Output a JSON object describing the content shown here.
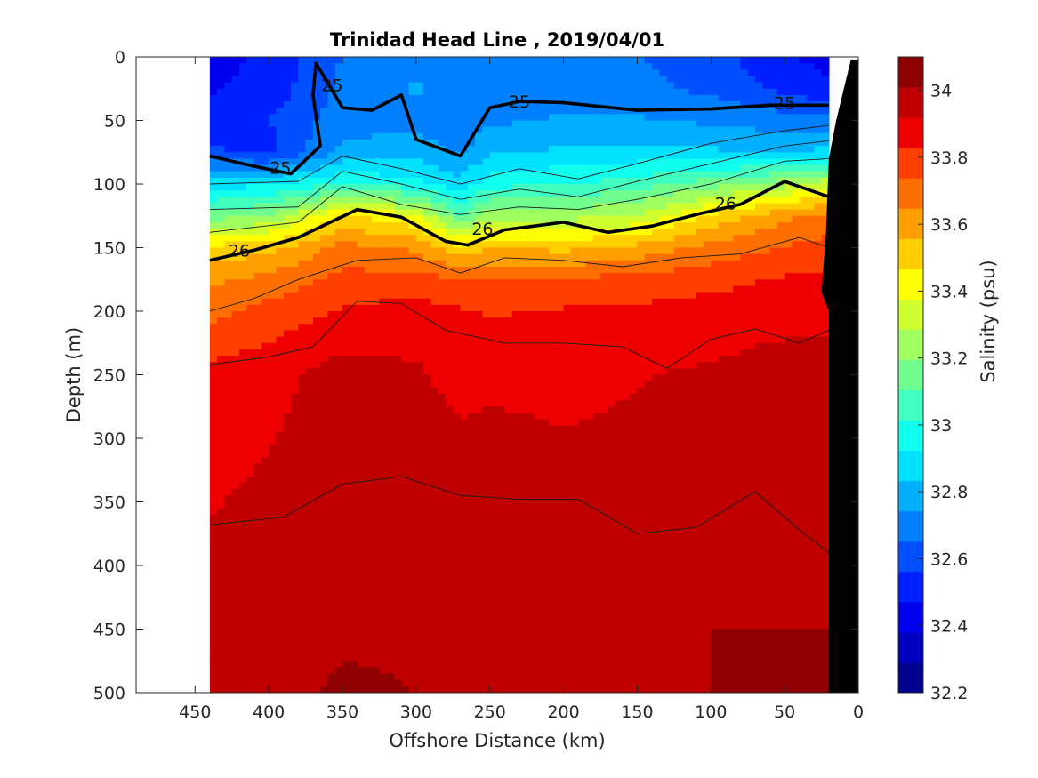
{
  "chart_data": {
    "type": "heatmap",
    "title": "Trinidad Head Line , 2019/04/01",
    "xlabel": "Offshore Distance (km)",
    "ylabel": "Depth (m)",
    "colorbar_label": "Salinity (psu)",
    "x_range": [
      490,
      0
    ],
    "y_range": [
      0,
      500
    ],
    "x_reversed": true,
    "y_reversed": true,
    "x_ticks": [
      450,
      400,
      350,
      300,
      250,
      200,
      150,
      100,
      50,
      0
    ],
    "y_ticks": [
      0,
      50,
      100,
      150,
      200,
      250,
      300,
      350,
      400,
      450,
      500
    ],
    "colorbar": {
      "range": [
        32.2,
        34.1
      ],
      "levels": [
        32.2,
        32.3,
        32.4,
        32.5,
        32.6,
        32.7,
        32.8,
        32.9,
        33.0,
        33.1,
        33.2,
        33.3,
        33.4,
        33.5,
        33.6,
        33.7,
        33.8,
        33.9,
        34.0,
        34.1
      ],
      "ticks": [
        32.2,
        32.4,
        32.6,
        32.8,
        33.0,
        33.2,
        33.4,
        33.6,
        33.8,
        34.0
      ],
      "tick_labels": [
        "32.2",
        "32.4",
        "32.6",
        "32.8",
        "33",
        "33.2",
        "33.4",
        "33.6",
        "33.8",
        "34"
      ],
      "colors": [
        "#00008f",
        "#0000bf",
        "#0000ef",
        "#0020ff",
        "#0050ff",
        "#0080ff",
        "#00b0ff",
        "#00e0ff",
        "#10ffef",
        "#40ffbf",
        "#70ff8f",
        "#a0ff60",
        "#d0ff30",
        "#ffff00",
        "#ffcf00",
        "#ff9f00",
        "#ff6f00",
        "#ff3f00",
        "#ef0000",
        "#bf0000",
        "#8f0000"
      ],
      "location": "right"
    },
    "grid": false,
    "section": {
      "x": [
        440,
        400,
        350,
        300,
        270,
        250,
        200,
        150,
        100,
        50,
        20
      ],
      "depths": [
        0,
        25,
        50,
        75,
        100,
        125,
        150,
        175,
        200,
        250,
        300,
        350,
        400,
        450,
        500
      ],
      "salinity": [
        [
          32.45,
          32.5,
          32.68,
          32.75,
          32.7,
          32.7,
          32.72,
          32.68,
          32.62,
          32.5,
          32.45
        ],
        [
          32.48,
          32.52,
          32.7,
          32.78,
          32.72,
          32.72,
          32.74,
          32.7,
          32.65,
          32.55,
          32.5
        ],
        [
          32.5,
          32.58,
          32.72,
          32.75,
          32.7,
          32.75,
          32.78,
          32.78,
          32.75,
          32.72,
          32.7
        ],
        [
          32.6,
          32.55,
          32.8,
          32.82,
          32.75,
          32.85,
          32.88,
          32.9,
          32.88,
          32.85,
          32.9
        ],
        [
          32.9,
          32.95,
          33.05,
          33.0,
          32.9,
          33.02,
          33.05,
          33.1,
          33.2,
          33.3,
          33.4
        ],
        [
          33.2,
          33.25,
          33.55,
          33.45,
          33.15,
          33.3,
          33.3,
          33.35,
          33.55,
          33.7,
          33.75
        ],
        [
          33.55,
          33.6,
          33.75,
          33.7,
          33.55,
          33.62,
          33.6,
          33.65,
          33.75,
          33.82,
          33.85
        ],
        [
          33.7,
          33.75,
          33.85,
          33.85,
          33.82,
          33.82,
          33.82,
          33.85,
          33.88,
          33.92,
          33.92
        ],
        [
          33.78,
          33.85,
          33.92,
          33.95,
          33.92,
          33.9,
          33.92,
          33.93,
          33.95,
          33.97,
          33.97
        ],
        [
          33.95,
          33.97,
          34.05,
          34.02,
          33.97,
          33.98,
          33.98,
          34.0,
          34.02,
          34.05,
          34.05
        ],
        [
          33.98,
          34.0,
          34.06,
          34.05,
          34.02,
          34.03,
          34.01,
          34.02,
          34.05,
          34.07,
          34.07
        ],
        [
          34.0,
          34.02,
          34.07,
          34.07,
          34.05,
          34.08,
          34.03,
          34.05,
          34.08,
          34.08,
          34.08
        ],
        [
          34.02,
          34.05,
          34.08,
          34.08,
          34.07,
          34.08,
          34.05,
          34.08,
          34.09,
          34.09,
          34.09
        ],
        [
          34.05,
          34.07,
          34.09,
          34.09,
          34.08,
          34.09,
          34.08,
          34.09,
          34.1,
          34.1,
          34.1
        ],
        [
          34.07,
          34.08,
          34.11,
          34.1,
          34.09,
          34.1,
          34.1,
          34.1,
          34.1,
          34.11,
          34.11
        ]
      ]
    },
    "density_contours": [
      {
        "label": "25",
        "points": [
          [
            440,
            78
          ],
          [
            410,
            86
          ],
          [
            385,
            92
          ],
          [
            365,
            70
          ],
          [
            370,
            30
          ],
          [
            368,
            5
          ],
          [
            350,
            40
          ],
          [
            330,
            42
          ],
          [
            310,
            30
          ],
          [
            300,
            65
          ],
          [
            270,
            78
          ],
          [
            250,
            40
          ],
          [
            230,
            35
          ],
          [
            200,
            36
          ],
          [
            150,
            42
          ],
          [
            100,
            41
          ],
          [
            60,
            38
          ],
          [
            20,
            38
          ]
        ]
      },
      {
        "label": "26",
        "points": [
          [
            440,
            160
          ],
          [
            410,
            152
          ],
          [
            380,
            142
          ],
          [
            340,
            120
          ],
          [
            310,
            126
          ],
          [
            280,
            145
          ],
          [
            265,
            148
          ],
          [
            240,
            136
          ],
          [
            200,
            130
          ],
          [
            170,
            138
          ],
          [
            140,
            133
          ],
          [
            110,
            124
          ],
          [
            80,
            116
          ],
          [
            50,
            98
          ],
          [
            20,
            110
          ]
        ]
      }
    ],
    "density_label_positions": [
      {
        "label": "25",
        "x": 392,
        "y": 87
      },
      {
        "label": "25",
        "x": 357,
        "y": 22
      },
      {
        "label": "25",
        "x": 230,
        "y": 35
      },
      {
        "label": "25",
        "x": 50,
        "y": 36
      },
      {
        "label": "26",
        "x": 420,
        "y": 152
      },
      {
        "label": "26",
        "x": 255,
        "y": 135
      },
      {
        "label": "26",
        "x": 90,
        "y": 115
      }
    ],
    "thin_contours": [
      [
        [
          440,
          120
        ],
        [
          380,
          118
        ],
        [
          350,
          90
        ],
        [
          310,
          100
        ],
        [
          270,
          112
        ],
        [
          230,
          104
        ],
        [
          190,
          110
        ],
        [
          150,
          98
        ],
        [
          100,
          84
        ],
        [
          50,
          70
        ],
        [
          20,
          66
        ]
      ],
      [
        [
          440,
          100
        ],
        [
          380,
          98
        ],
        [
          350,
          78
        ],
        [
          310,
          88
        ],
        [
          270,
          100
        ],
        [
          230,
          88
        ],
        [
          190,
          96
        ],
        [
          150,
          84
        ],
        [
          100,
          68
        ],
        [
          50,
          58
        ],
        [
          20,
          54
        ]
      ],
      [
        [
          440,
          138
        ],
        [
          380,
          130
        ],
        [
          350,
          102
        ],
        [
          310,
          116
        ],
        [
          270,
          124
        ],
        [
          230,
          118
        ],
        [
          190,
          120
        ],
        [
          150,
          112
        ],
        [
          100,
          100
        ],
        [
          50,
          82
        ],
        [
          20,
          80
        ]
      ],
      [
        [
          440,
          200
        ],
        [
          410,
          190
        ],
        [
          380,
          175
        ],
        [
          340,
          160
        ],
        [
          300,
          158
        ],
        [
          270,
          170
        ],
        [
          240,
          158
        ],
        [
          200,
          160
        ],
        [
          160,
          165
        ],
        [
          120,
          158
        ],
        [
          80,
          155
        ],
        [
          40,
          142
        ],
        [
          20,
          150
        ]
      ],
      [
        [
          440,
          242
        ],
        [
          400,
          236
        ],
        [
          370,
          228
        ],
        [
          340,
          192
        ],
        [
          310,
          194
        ],
        [
          280,
          215
        ],
        [
          240,
          225
        ],
        [
          200,
          225
        ],
        [
          160,
          228
        ],
        [
          130,
          245
        ],
        [
          100,
          222
        ],
        [
          70,
          214
        ],
        [
          40,
          225
        ],
        [
          20,
          215
        ]
      ],
      [
        [
          440,
          368
        ],
        [
          390,
          362
        ],
        [
          350,
          336
        ],
        [
          310,
          330
        ],
        [
          270,
          345
        ],
        [
          230,
          348
        ],
        [
          190,
          348
        ],
        [
          150,
          375
        ],
        [
          110,
          370
        ],
        [
          70,
          342
        ],
        [
          40,
          372
        ],
        [
          20,
          390
        ]
      ]
    ],
    "land_polygon": [
      [
        20,
        500
      ],
      [
        0,
        500
      ],
      [
        0,
        2
      ],
      [
        5,
        2
      ],
      [
        15,
        50
      ],
      [
        20,
        80
      ],
      [
        22,
        140
      ],
      [
        25,
        185
      ],
      [
        20,
        200
      ]
    ],
    "data_extent": {
      "x_min": 20,
      "x_max": 440
    }
  }
}
